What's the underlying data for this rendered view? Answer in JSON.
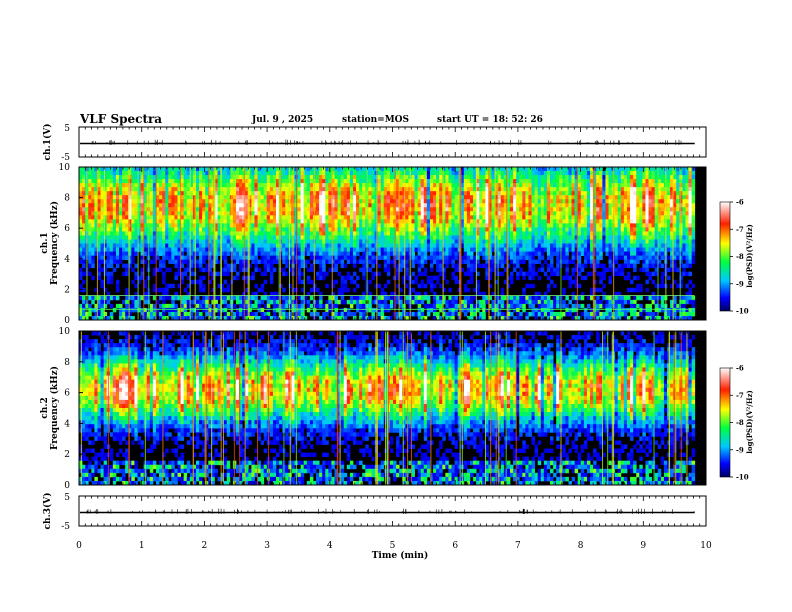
{
  "header": {
    "title": "VLF Spectra",
    "date": "Jul. 9 , 2025",
    "station": "station=MOS",
    "start": "start UT =  18: 52: 26"
  },
  "chart_data": {
    "type": "heatmap",
    "title": "VLF Spectra",
    "xlabel": "Time (min)",
    "xlim": [
      0,
      10
    ],
    "xticks": [
      "0",
      "1",
      "2",
      "3",
      "4",
      "5",
      "6",
      "7",
      "8",
      "9",
      "10"
    ],
    "panels": [
      {
        "id": "ch1_waveform",
        "ylabel": "ch.1(V)",
        "ylim": [
          -5,
          5
        ],
        "yticks": [
          "5",
          "-5"
        ],
        "type": "line",
        "level": -0.5
      },
      {
        "id": "ch1_spectrogram",
        "ylabel_top": "ch.1",
        "ylabel": "Frequency (kHz)",
        "ylim": [
          0,
          10
        ],
        "yticks": [
          "0",
          "2",
          "4",
          "6",
          "8",
          "10"
        ],
        "type": "heatmap",
        "band_center_khz": 7.5,
        "colorbar": {
          "label": "log(PSD)(V²/Hz)",
          "range": [
            -10,
            -6
          ],
          "ticks": [
            "-6",
            "-7",
            "-8",
            "-9",
            "-10"
          ]
        }
      },
      {
        "id": "ch2_spectrogram",
        "ylabel_top": "ch.2",
        "ylabel": "Frequency (kHz)",
        "ylim": [
          0,
          10
        ],
        "yticks": [
          "0",
          "2",
          "4",
          "6",
          "8",
          "10"
        ],
        "type": "heatmap",
        "band_center_khz": 6.2,
        "colorbar": {
          "label": "log(PSD)(V²/Hz)",
          "range": [
            -10,
            -6
          ],
          "ticks": [
            "-6",
            "-7",
            "-8",
            "-9",
            "-10"
          ]
        }
      },
      {
        "id": "ch3_waveform",
        "ylabel": "ch.3(V)",
        "ylim": [
          -5,
          5
        ],
        "yticks": [
          "5",
          "-5"
        ],
        "type": "line",
        "level": -0.5
      }
    ]
  }
}
